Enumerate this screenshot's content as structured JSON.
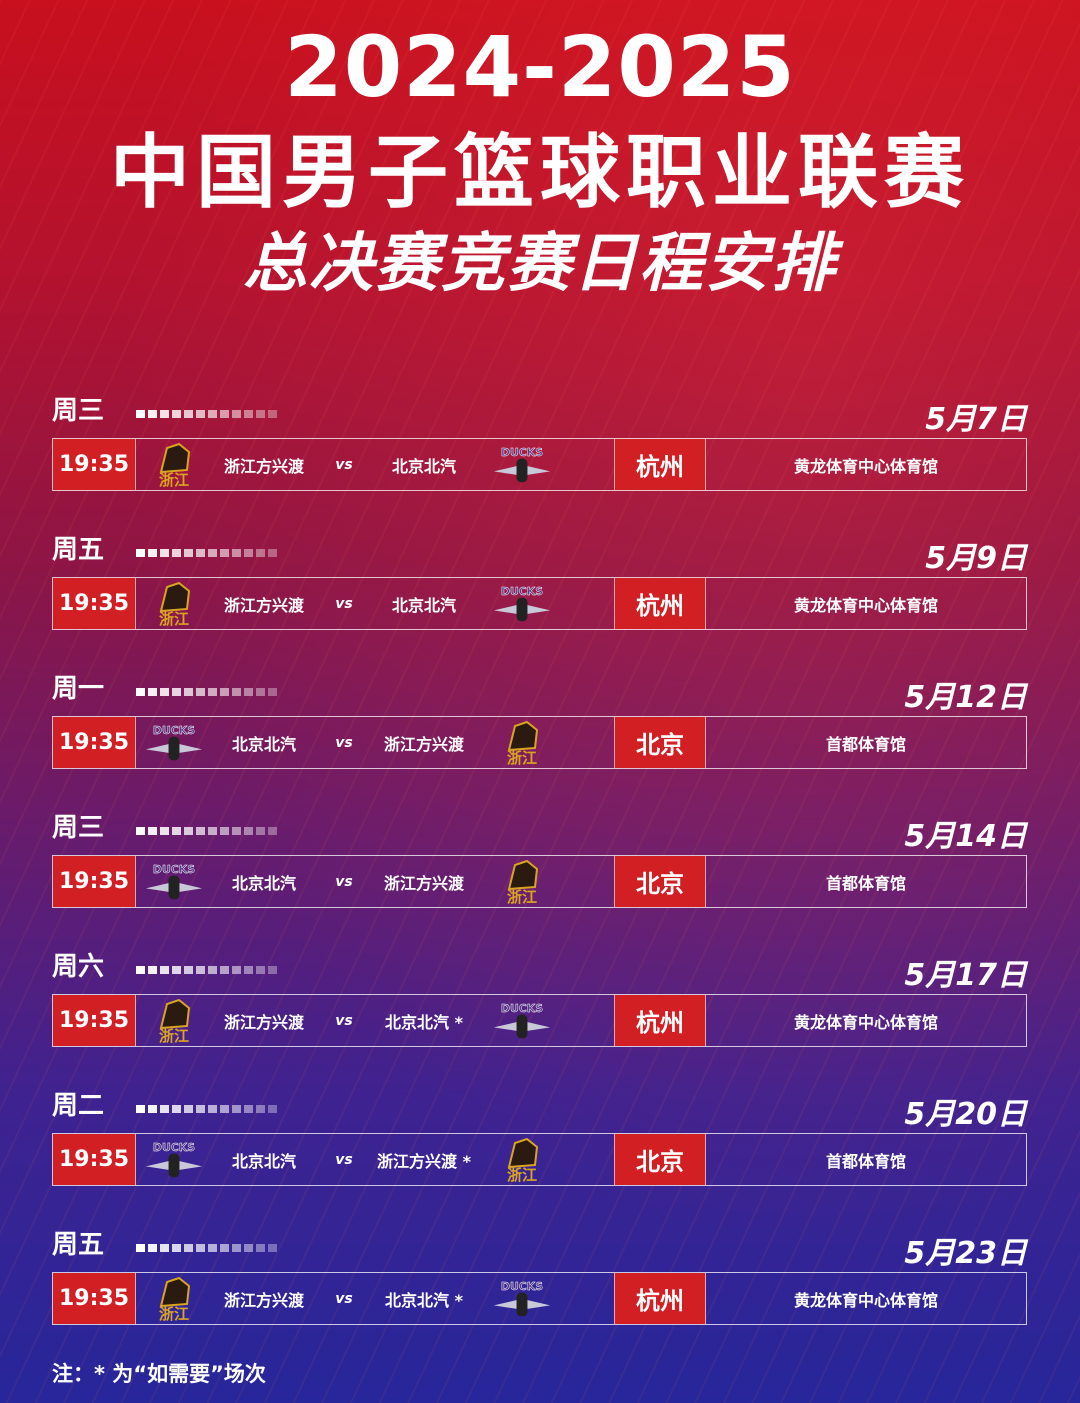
{
  "title": {
    "line1": "2024-2025",
    "line2": "中国男子篮球职业联赛",
    "line3": "总决赛竞赛日程安排"
  },
  "colors": {
    "accent_red": "#d21f24",
    "logo_gold": "#d9a520",
    "logo_purple": "#5a3c8c"
  },
  "logos": {
    "zhejiang": "浙江",
    "beijing": "DUCKS"
  },
  "vs_label": "vs",
  "games": [
    {
      "weekday": "周三",
      "date": "5月7日",
      "time": "19:35",
      "home": "浙江方兴渡",
      "home_logo": "zhejiang",
      "away": "北京北汽",
      "away_logo": "beijing",
      "city": "杭州",
      "venue": "黄龙体育中心体育馆"
    },
    {
      "weekday": "周五",
      "date": "5月9日",
      "time": "19:35",
      "home": "浙江方兴渡",
      "home_logo": "zhejiang",
      "away": "北京北汽",
      "away_logo": "beijing",
      "city": "杭州",
      "venue": "黄龙体育中心体育馆"
    },
    {
      "weekday": "周一",
      "date": "5月12日",
      "time": "19:35",
      "home": "北京北汽",
      "home_logo": "beijing",
      "away": "浙江方兴渡",
      "away_logo": "zhejiang",
      "city": "北京",
      "venue": "首都体育馆"
    },
    {
      "weekday": "周三",
      "date": "5月14日",
      "time": "19:35",
      "home": "北京北汽",
      "home_logo": "beijing",
      "away": "浙江方兴渡",
      "away_logo": "zhejiang",
      "city": "北京",
      "venue": "首都体育馆"
    },
    {
      "weekday": "周六",
      "date": "5月17日",
      "time": "19:35",
      "home": "浙江方兴渡",
      "home_logo": "zhejiang",
      "away": "北京北汽 *",
      "away_logo": "beijing",
      "city": "杭州",
      "venue": "黄龙体育中心体育馆"
    },
    {
      "weekday": "周二",
      "date": "5月20日",
      "time": "19:35",
      "home": "北京北汽",
      "home_logo": "beijing",
      "away": "浙江方兴渡 *",
      "away_logo": "zhejiang",
      "city": "北京",
      "venue": "首都体育馆"
    },
    {
      "weekday": "周五",
      "date": "5月23日",
      "time": "19:35",
      "home": "浙江方兴渡",
      "home_logo": "zhejiang",
      "away": "北京北汽 *",
      "away_logo": "beijing",
      "city": "杭州",
      "venue": "黄龙体育中心体育馆"
    }
  ],
  "note": "注：* 为“如需要”场次"
}
